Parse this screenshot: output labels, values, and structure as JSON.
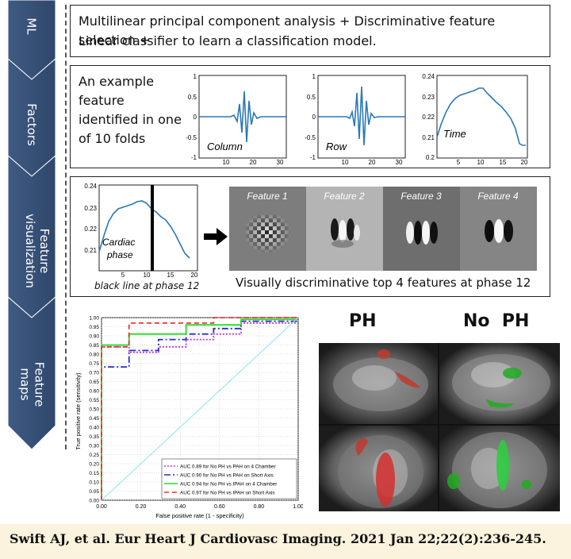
{
  "steps": [
    {
      "label": "ML"
    },
    {
      "label": "Factors"
    },
    {
      "label": "Feature\nvisualization"
    },
    {
      "label": "Feature\nmaps"
    }
  ],
  "ml_panel": {
    "line1": "Multilinear principal component analysis + Discriminative feature selection +",
    "line2": "Linear classifier to learn a classification model."
  },
  "factors_panel": {
    "caption_lines": [
      "An example",
      "feature",
      "identified in one",
      "of 10 folds"
    ],
    "plots": [
      {
        "label": "Column",
        "yticks": [
          "1",
          "0.5",
          "0",
          "-0.5",
          "-1"
        ],
        "xticks": [
          "10",
          "20",
          "30"
        ]
      },
      {
        "label": "Row",
        "yticks": [
          "1",
          "0.5",
          "0",
          "-0.5",
          "-1"
        ],
        "xticks": [
          "10",
          "20",
          "30"
        ]
      },
      {
        "label": "Time",
        "yticks": [
          "0.24",
          "0.23",
          "0.22",
          "0.21",
          "0.2"
        ],
        "xticks": [
          "5",
          "10",
          "15",
          "20"
        ]
      }
    ]
  },
  "visualization_panel": {
    "plot": {
      "label_line1": "Cardiac",
      "label_line2": "phase",
      "yticks": [
        "0.24",
        "0.23",
        "0.22",
        "0.21"
      ],
      "xticks": [
        "5",
        "10",
        "15",
        "20"
      ],
      "caption": "black line at phase 12"
    },
    "features": [
      "Feature 1",
      "Feature 2",
      "Feature 3",
      "Feature 4"
    ],
    "caption": "Visually discriminative top 4 features at phase 12"
  },
  "roc": {
    "chart_data": {
      "type": "line",
      "xlabel": "False positive rate (1 - specificity)",
      "ylabel": "True positive rate (sensitivity)",
      "xlim": [
        0,
        1
      ],
      "ylim": [
        0,
        1
      ],
      "xticks": [
        "0.00",
        "0.20",
        "0.40",
        "0.60",
        "0.80",
        "1.00"
      ],
      "yticks": [
        "0.00",
        "0.05",
        "0.10",
        "0.15",
        "0.20",
        "0.25",
        "0.30",
        "0.35",
        "0.40",
        "0.45",
        "0.50",
        "0.55",
        "0.60",
        "0.65",
        "0.70",
        "0.75",
        "0.80",
        "0.85",
        "0.90",
        "0.95",
        "1.00"
      ],
      "grid": true,
      "legend_position": "bottom-right",
      "series": [
        {
          "name": "AUC 0.89 for No PH vs  PAH on 4 Chamber",
          "color": "#cc33cc",
          "dash": "2,2",
          "x": [
            0,
            0,
            0.14,
            0.14,
            0.29,
            0.29,
            0.43,
            0.43,
            0.57,
            0.57,
            0.71,
            0.71,
            1.0
          ],
          "y": [
            0,
            0.84,
            0.84,
            0.81,
            0.81,
            0.84,
            0.84,
            0.88,
            0.88,
            0.91,
            0.91,
            0.97,
            0.97
          ]
        },
        {
          "name": "AUC 0.90 for No PH vs  PAH on Short Axis",
          "color": "#2b2bcc",
          "dash": "8,3,2,3",
          "x": [
            0,
            0,
            0.14,
            0.14,
            0.29,
            0.29,
            0.43,
            0.43,
            0.57,
            0.57,
            0.71,
            0.71,
            1.0
          ],
          "y": [
            0,
            0.73,
            0.73,
            0.82,
            0.82,
            0.88,
            0.88,
            0.91,
            0.91,
            0.94,
            0.94,
            0.98,
            0.98
          ]
        },
        {
          "name": "AUC 0.94 for No PH vs IPAH on 4 Chamber",
          "color": "#22dd22",
          "dash": "",
          "x": [
            0,
            0,
            0.14,
            0.14,
            0.43,
            0.43,
            0.71,
            0.71,
            1.0
          ],
          "y": [
            0,
            0.85,
            0.85,
            0.91,
            0.91,
            0.96,
            0.96,
            0.99,
            0.99
          ]
        },
        {
          "name": "AUC 0.97 for No PH vs IPAH on Short Axis",
          "color": "#ee3333",
          "dash": "6,4",
          "x": [
            0,
            0,
            0.14,
            0.14,
            0.57,
            0.57,
            1.0
          ],
          "y": [
            0,
            0.84,
            0.84,
            0.97,
            0.97,
            1.0,
            1.0
          ]
        },
        {
          "name": "chance",
          "color": "#88e6f0",
          "dash": "",
          "x": [
            0,
            1
          ],
          "y": [
            0,
            1
          ]
        }
      ]
    }
  },
  "maps": {
    "label_ph": "PH",
    "label_noph": "No  PH"
  },
  "footer": {
    "citation": "Swift AJ, et al. Eur Heart J Cardiovasc Imaging. 2021 Jan 22;22(2):236-245."
  }
}
